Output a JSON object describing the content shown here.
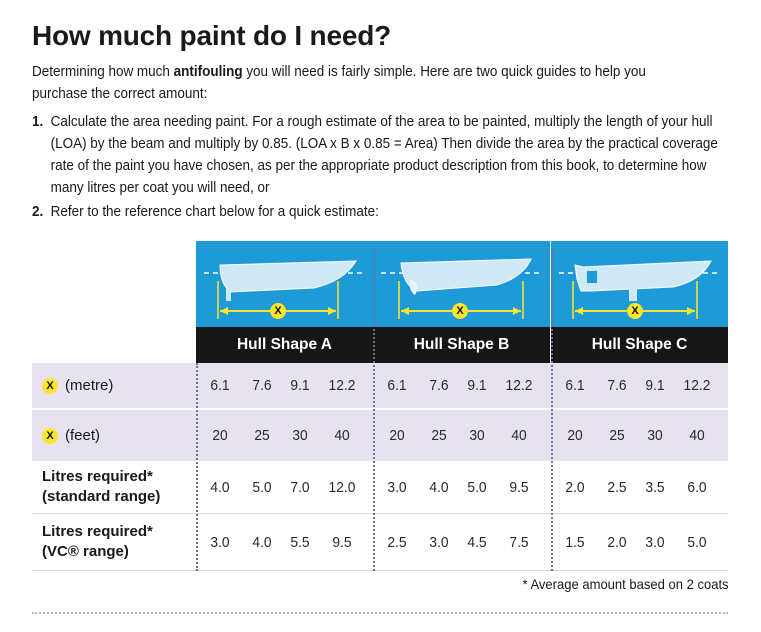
{
  "title": "How much paint do I need?",
  "intro": {
    "before": "Determining how much ",
    "bold": "antifouling",
    "after": " you will need is fairly simple. Here are two quick guides to help you purchase the correct amount:"
  },
  "steps": [
    {
      "num": "1.",
      "text": "Calculate the area needing paint. For a rough estimate of the area to be painted, multiply the length of your hull (LOA) by the beam and multiply by 0.85. (LOA x B x 0.85 = Area) Then divide the area by the practical coverage rate of the paint you have chosen, as per the appropriate product description from this book, to determine how many litres per coat you will need, or"
    },
    {
      "num": "2.",
      "text": "Refer to the reference chart below for a quick estimate:"
    }
  ],
  "marker": "X",
  "hulls": [
    {
      "label": "Hull Shape A"
    },
    {
      "label": "Hull Shape B"
    },
    {
      "label": "Hull Shape C"
    }
  ],
  "rows": [
    {
      "label_main": "(metre)",
      "values": [
        [
          "6.1",
          "7.6",
          "9.1",
          "12.2"
        ],
        [
          "6.1",
          "7.6",
          "9.1",
          "12.2"
        ],
        [
          "6.1",
          "7.6",
          "9.1",
          "12.2"
        ]
      ]
    },
    {
      "label_main": "(feet)",
      "values": [
        [
          "20",
          "25",
          "30",
          "40"
        ],
        [
          "20",
          "25",
          "30",
          "40"
        ],
        [
          "20",
          "25",
          "30",
          "40"
        ]
      ]
    },
    {
      "label_line1": "Litres required*",
      "label_line2": "(standard range)",
      "values": [
        [
          "4.0",
          "5.0",
          "7.0",
          "12.0"
        ],
        [
          "3.0",
          "4.0",
          "5.0",
          "9.5"
        ],
        [
          "2.0",
          "2.5",
          "3.5",
          "6.0"
        ]
      ]
    },
    {
      "label_line1": "Litres required*",
      "label_line2": "(VC® range)",
      "values": [
        [
          "3.0",
          "4.0",
          "5.5",
          "9.5"
        ],
        [
          "2.5",
          "3.0",
          "4.5",
          "7.5"
        ],
        [
          "1.5",
          "2.0",
          "3.0",
          "5.0"
        ]
      ]
    }
  ],
  "footnote": "* Average amount based on 2 coats",
  "colors": {
    "hull_bg": "#1e9ad6",
    "label_bg": "#161616",
    "marker": "#fde52b",
    "row_shade": "#e6e3ef"
  }
}
